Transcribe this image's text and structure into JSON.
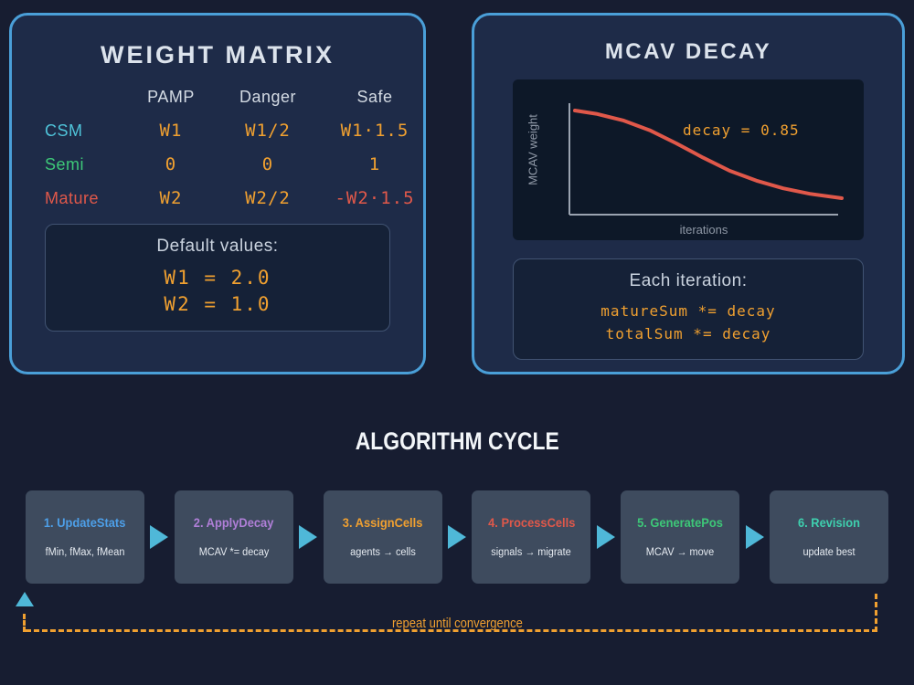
{
  "palette": {
    "background": "#171d31",
    "panel_background": "#1e2b48",
    "panel_border": "#4a9fd8",
    "subpanel_background": "#152137",
    "value_orange": "#f0a030",
    "curve_red": "#e0584a",
    "arrow_cyan": "#4fb8d8",
    "step_box": "#3e4b5e"
  },
  "weight_matrix": {
    "title": "WEIGHT MATRIX",
    "col_headers": [
      "PAMP",
      "Danger",
      "Safe"
    ],
    "rows": [
      {
        "label": "CSM",
        "color": "#4fc3d9",
        "values": [
          "W1",
          "W1/2",
          "W1·1.5"
        ],
        "value_colors": [
          "#f0a030",
          "#f0a030",
          "#f0a030"
        ]
      },
      {
        "label": "Semi",
        "color": "#3dc878",
        "values": [
          "0",
          "0",
          "1"
        ],
        "value_colors": [
          "#f0a030",
          "#f0a030",
          "#f0a030"
        ]
      },
      {
        "label": "Mature",
        "color": "#e0584a",
        "values": [
          "W2",
          "W2/2",
          "-W2·1.5"
        ],
        "value_colors": [
          "#f0a030",
          "#f0a030",
          "#e0584a"
        ]
      }
    ],
    "defaults": {
      "title": "Default values:",
      "lines": [
        "W1 = 2.0",
        "W2 = 1.0"
      ]
    }
  },
  "mcav_decay": {
    "title": "MCAV DECAY",
    "plot": {
      "ylabel": "MCAV weight",
      "xlabel": "iterations",
      "annotation": "decay = 0.85",
      "annotation_color": "#f0a030",
      "curve_color": "#e0584a",
      "curve_points": [
        [
          0,
          0.95
        ],
        [
          0.08,
          0.92
        ],
        [
          0.18,
          0.86
        ],
        [
          0.28,
          0.77
        ],
        [
          0.38,
          0.65
        ],
        [
          0.48,
          0.52
        ],
        [
          0.58,
          0.4
        ],
        [
          0.68,
          0.31
        ],
        [
          0.78,
          0.24
        ],
        [
          0.88,
          0.19
        ],
        [
          1,
          0.15
        ]
      ]
    },
    "each_iteration": {
      "title": "Each iteration:",
      "lines": [
        "matureSum *= decay",
        "totalSum *= decay"
      ]
    }
  },
  "algorithm_cycle": {
    "title": "ALGORITHM CYCLE",
    "steps": [
      {
        "label": "1. UpdateStats",
        "sub": "fMin, fMax, fMean",
        "color": "#4d9fe8"
      },
      {
        "label": "2. ApplyDecay",
        "sub": "MCAV *= decay",
        "color": "#b07fd8"
      },
      {
        "label": "3. AssignCells",
        "sub": "agents → cells",
        "color": "#f0a030"
      },
      {
        "label": "4. ProcessCells",
        "sub": "signals → migrate",
        "color": "#e0584a"
      },
      {
        "label": "5. GeneratePos",
        "sub": "MCAV → move",
        "color": "#3dc878"
      },
      {
        "label": "6. Revision",
        "sub": "update best",
        "color": "#3ecfae"
      }
    ],
    "loop_label": "repeat until convergence"
  }
}
